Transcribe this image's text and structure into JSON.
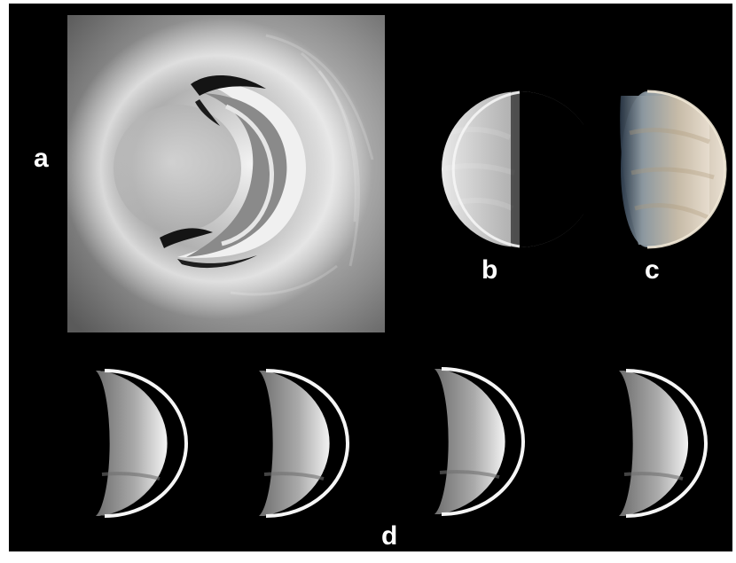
{
  "panel_labels": {
    "a": "a",
    "b": "b",
    "c": "c",
    "d": "d"
  },
  "colors": {
    "background": "#000000",
    "label_text": "#ffffff",
    "planet_uv_light": "#e6e6e6",
    "planet_color_tint": "#c9c3b6",
    "planet_color_edge": "#b8cde0"
  }
}
